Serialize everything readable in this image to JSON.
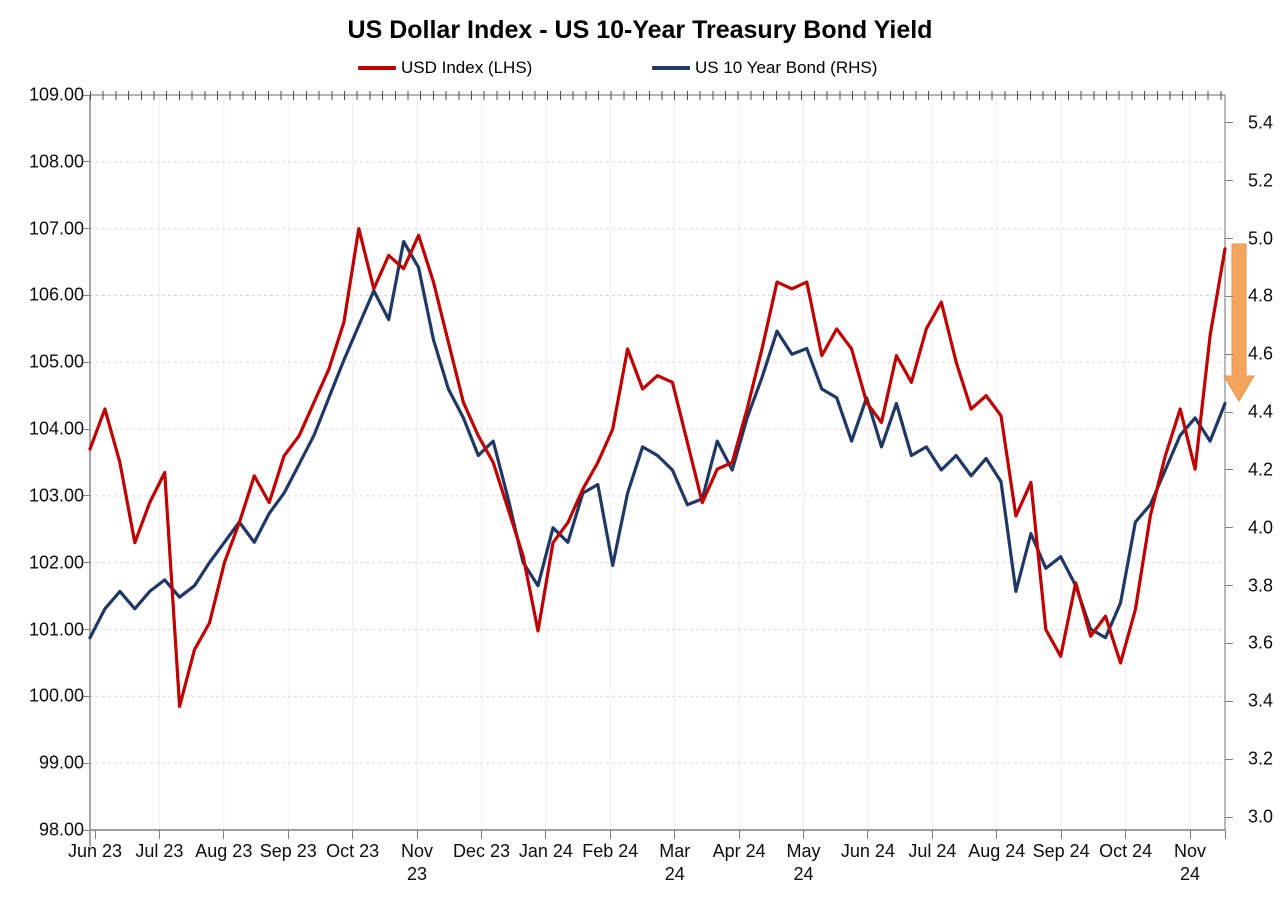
{
  "title": "US Dollar Index - US 10-Year Treasury Bond Yield",
  "legend": [
    {
      "label": "USD Index (LHS)",
      "color": "#C00000"
    },
    {
      "label": "US 10 Year Bond (RHS)",
      "color": "#1F3864"
    }
  ],
  "annotation": {
    "name": "down-arrow",
    "color": "#F4A45C",
    "border_color": "#E8924A"
  },
  "colors": {
    "usd_line": "#C00000",
    "bond_line": "#1F3864",
    "gridline": "#D9D9D9",
    "vertical_gridline": "#EFEFEF",
    "axis_line": "#9b9b9b"
  },
  "chart_data": {
    "type": "line",
    "title": "US Dollar Index - US 10-Year Treasury Bond Yield",
    "legend_position": "top",
    "grid": true,
    "x_labels": [
      [
        "Jun 23"
      ],
      [
        "Jul 23"
      ],
      [
        "Aug 23"
      ],
      [
        "Sep 23"
      ],
      [
        "Oct 23"
      ],
      [
        "Nov",
        "23"
      ],
      [
        "Dec 23"
      ],
      [
        "Jan 24"
      ],
      [
        "Feb 24"
      ],
      [
        "Mar",
        "24"
      ],
      [
        "Apr 24"
      ],
      [
        "May",
        "24"
      ],
      [
        "Jun 24"
      ],
      [
        "Jul 24"
      ],
      [
        "Aug 24"
      ],
      [
        "Sep 24"
      ],
      [
        "Oct 24"
      ],
      [
        "Nov",
        "24"
      ]
    ],
    "left_axis": {
      "min": 98.0,
      "max": 109.0,
      "step": 1.0,
      "tick_labels": [
        "109.00",
        "108.00",
        "107.00",
        "106.00",
        "105.00",
        "104.00",
        "103.00",
        "102.00",
        "101.00",
        "100.00",
        "99.00",
        "98.00"
      ]
    },
    "right_axis": {
      "min": 3.0,
      "max": 5.4,
      "step": 0.2,
      "tick_labels": [
        "5.4",
        "5.2",
        "5.0",
        "4.8",
        "4.6",
        "4.4",
        "4.2",
        "4.0",
        "3.8",
        "3.6",
        "3.4",
        "3.2",
        "3.0"
      ]
    },
    "series": [
      {
        "name": "US 10 Year Bond (RHS)",
        "axis": "right",
        "color": "#1F3864",
        "values": [
          3.62,
          3.72,
          3.78,
          3.72,
          3.78,
          3.82,
          3.76,
          3.8,
          3.88,
          3.95,
          4.02,
          3.95,
          4.05,
          4.12,
          4.22,
          4.32,
          4.45,
          4.58,
          4.7,
          4.82,
          4.72,
          4.99,
          4.9,
          4.65,
          4.48,
          4.38,
          4.25,
          4.3,
          4.1,
          3.88,
          3.8,
          4.0,
          3.95,
          4.12,
          4.15,
          3.87,
          4.12,
          4.28,
          4.25,
          4.2,
          4.08,
          4.1,
          4.3,
          4.2,
          4.38,
          4.52,
          4.68,
          4.6,
          4.62,
          4.48,
          4.45,
          4.3,
          4.45,
          4.28,
          4.43,
          4.25,
          4.28,
          4.2,
          4.25,
          4.18,
          4.24,
          4.16,
          3.78,
          3.98,
          3.86,
          3.9,
          3.8,
          3.65,
          3.62,
          3.74,
          4.02,
          4.08,
          4.2,
          4.32,
          4.38,
          4.3,
          4.43
        ]
      },
      {
        "name": "USD Index (LHS)",
        "axis": "left",
        "color": "#C00000",
        "values": [
          103.7,
          104.3,
          103.5,
          102.3,
          102.9,
          103.35,
          99.85,
          100.7,
          101.1,
          102.0,
          102.6,
          103.3,
          102.9,
          103.6,
          103.9,
          104.4,
          104.9,
          105.6,
          107.0,
          106.1,
          106.6,
          106.4,
          106.9,
          106.2,
          105.3,
          104.4,
          103.9,
          103.5,
          102.8,
          102.1,
          100.98,
          102.3,
          102.6,
          103.1,
          103.5,
          104.0,
          105.2,
          104.6,
          104.8,
          104.7,
          103.8,
          102.9,
          103.4,
          103.5,
          104.3,
          105.2,
          106.2,
          106.1,
          106.2,
          105.1,
          105.5,
          105.2,
          104.4,
          104.1,
          105.1,
          104.7,
          105.5,
          105.9,
          105.0,
          104.3,
          104.5,
          104.2,
          102.7,
          103.2,
          101.0,
          100.6,
          101.7,
          100.9,
          101.2,
          100.5,
          101.3,
          102.7,
          103.6,
          104.3,
          103.4,
          105.4,
          106.7
        ]
      }
    ]
  }
}
